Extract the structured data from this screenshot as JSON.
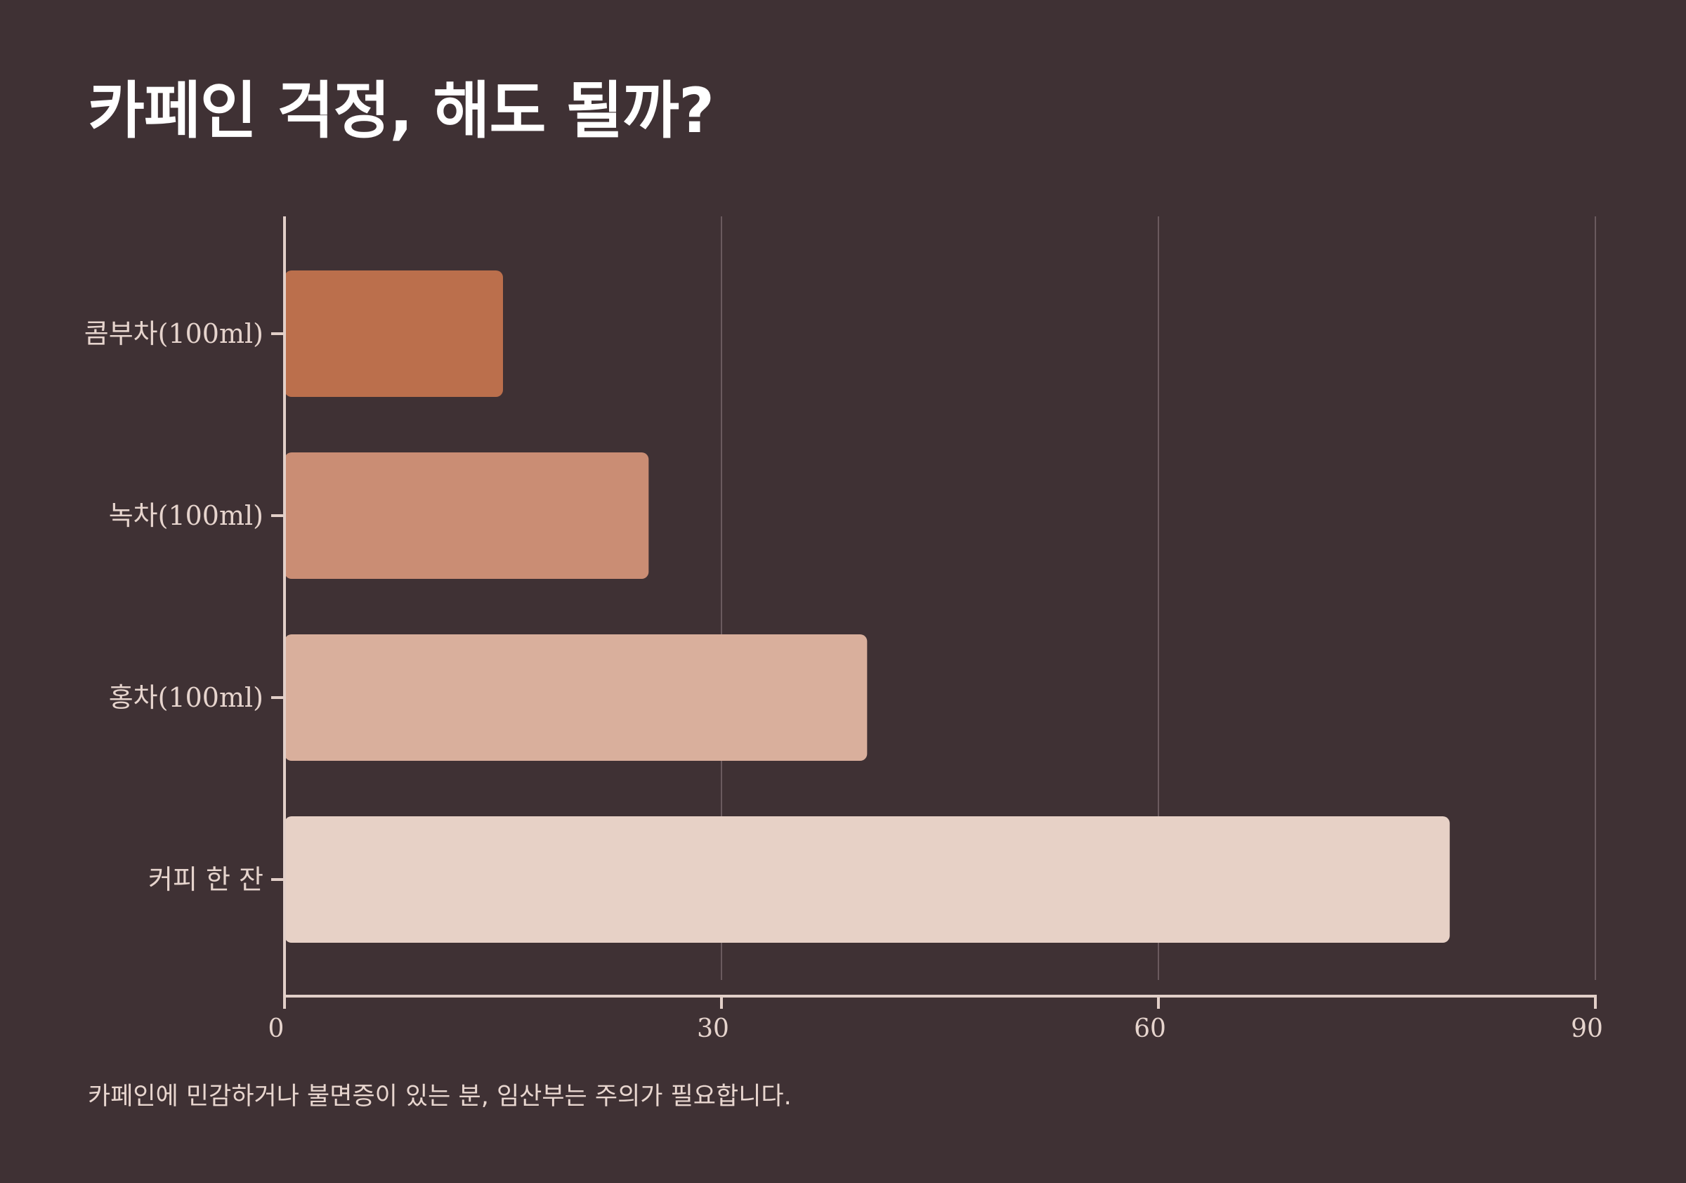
{
  "title": "카페인 걱정, 해도 될까?",
  "footnote": "카페인에 민감하거나 불면증이 있는 분, 임산부는 주의가 필요합니다.",
  "colors": {
    "background": "#3f3134",
    "axis": "#e2cfc8",
    "grid": "#6a5a5e",
    "text": "#e6d4cd"
  },
  "chart_data": {
    "type": "bar",
    "orientation": "horizontal",
    "title": "카페인 걱정, 해도 될까?",
    "categories": [
      "콤부차(100ml)",
      "녹차(100ml)",
      "홍차(100ml)",
      "커피 한 잔"
    ],
    "values": [
      15,
      25,
      40,
      80
    ],
    "bar_colors": [
      "#bb6f4c",
      "#ca8d74",
      "#d9af9c",
      "#e7d1c6"
    ],
    "xlim": [
      0,
      90
    ],
    "xticks": [
      0,
      30,
      60,
      90
    ],
    "xlabel": "",
    "ylabel": "",
    "grid": "vertical",
    "legend": "none"
  }
}
